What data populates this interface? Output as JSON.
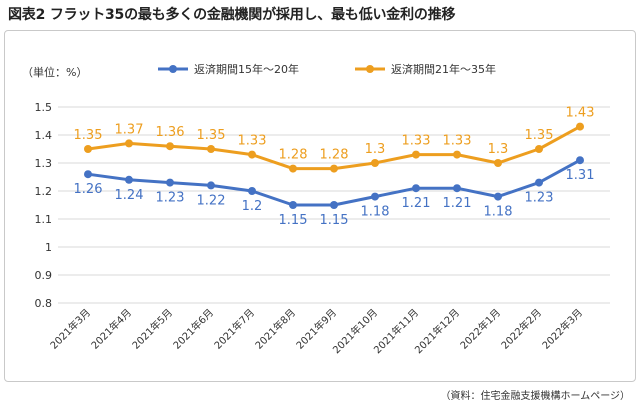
{
  "title": "図表2  フラット35の最も多くの金融機関が採用し、最も低い金利の推移",
  "source": "（資料：住宅金融支援機構ホームページ）",
  "colors": {
    "series_1": "#4472c4",
    "series_2": "#ed9e1f",
    "grid": "#d9d9d9"
  },
  "chart_data": {
    "type": "line",
    "unit_label": "（単位：%）",
    "categories": [
      "2021年3月",
      "2021年4月",
      "2021年5月",
      "2021年6月",
      "2021年7月",
      "2021年8月",
      "2021年9月",
      "2021年10月",
      "2021年11月",
      "2021年12月",
      "2022年1月",
      "2022年2月",
      "2022年3月"
    ],
    "series": [
      {
        "name": "返済期間15年～20年",
        "values": [
          1.26,
          1.24,
          1.23,
          1.22,
          1.2,
          1.15,
          1.15,
          1.18,
          1.21,
          1.21,
          1.18,
          1.23,
          1.31
        ]
      },
      {
        "name": "返済期間21年～35年",
        "values": [
          1.35,
          1.37,
          1.36,
          1.35,
          1.33,
          1.28,
          1.28,
          1.3,
          1.33,
          1.33,
          1.3,
          1.35,
          1.43
        ]
      }
    ],
    "y_ticks": [
      "0.8",
      "0.9",
      "1",
      "1.1",
      "1.2",
      "1.3",
      "1.4",
      "1.5"
    ],
    "ylim": [
      0.8,
      1.5
    ],
    "grid": true,
    "legend_position": "top-center",
    "data_labels": true
  }
}
